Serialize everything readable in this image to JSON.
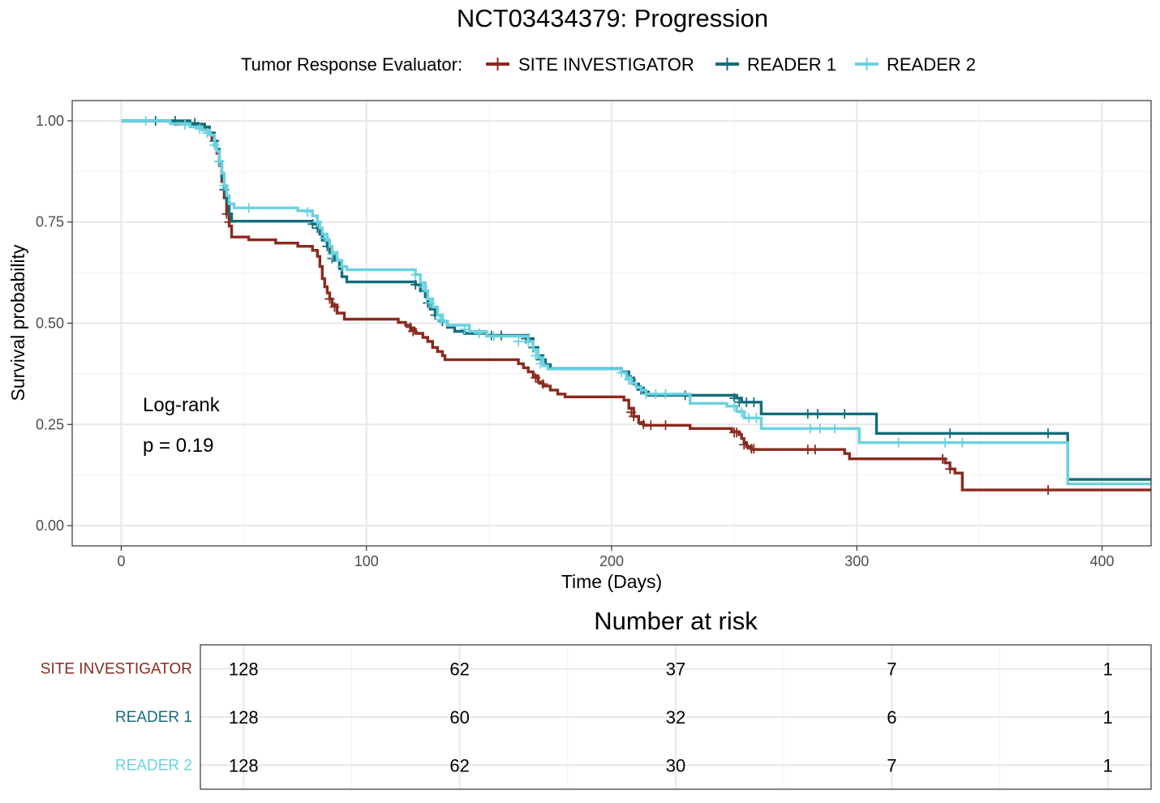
{
  "chart_data": {
    "type": "line",
    "subtype": "kaplan-meier",
    "title": "NCT03434379: Progression",
    "xlabel": "Time (Days)",
    "ylabel": "Survival probability",
    "xlim": [
      -20,
      420
    ],
    "ylim": [
      -0.05,
      1.05
    ],
    "xticks": [
      0,
      100,
      200,
      300,
      400
    ],
    "yticks": [
      0.0,
      0.25,
      0.5,
      0.75,
      1.0
    ],
    "xtick_labels": [
      "0",
      "100",
      "200",
      "300",
      "400"
    ],
    "ytick_labels": [
      "0.00",
      "0.25",
      "0.50",
      "0.75",
      "1.00"
    ],
    "grid": true,
    "legend": {
      "placement": "top",
      "title": "Tumor Response Evaluator:",
      "entries": [
        "SITE INVESTIGATOR",
        "READER 1",
        "READER 2"
      ]
    },
    "annotation": {
      "line1": "Log-rank",
      "line2": "p = 0.19"
    },
    "series": [
      {
        "name": "SITE INVESTIGATOR",
        "color": "#8B2A1E",
        "steps": [
          [
            0,
            1.0
          ],
          [
            22,
            0.992
          ],
          [
            30,
            0.985
          ],
          [
            34,
            0.977
          ],
          [
            36,
            0.97
          ],
          [
            37,
            0.955
          ],
          [
            38,
            0.94
          ],
          [
            39,
            0.92
          ],
          [
            40,
            0.89
          ],
          [
            41,
            0.85
          ],
          [
            42,
            0.81
          ],
          [
            43,
            0.77
          ],
          [
            44,
            0.74
          ],
          [
            45,
            0.713
          ],
          [
            52,
            0.706
          ],
          [
            63,
            0.698
          ],
          [
            72,
            0.69
          ],
          [
            78,
            0.68
          ],
          [
            80,
            0.665
          ],
          [
            81,
            0.64
          ],
          [
            82,
            0.61
          ],
          [
            83,
            0.59
          ],
          [
            84,
            0.575
          ],
          [
            85,
            0.56
          ],
          [
            86,
            0.545
          ],
          [
            88,
            0.525
          ],
          [
            91,
            0.51
          ],
          [
            113,
            0.502
          ],
          [
            116,
            0.495
          ],
          [
            118,
            0.485
          ],
          [
            120,
            0.475
          ],
          [
            123,
            0.465
          ],
          [
            125,
            0.455
          ],
          [
            127,
            0.44
          ],
          [
            129,
            0.43
          ],
          [
            131,
            0.42
          ],
          [
            132,
            0.41
          ],
          [
            162,
            0.4
          ],
          [
            164,
            0.39
          ],
          [
            166,
            0.38
          ],
          [
            168,
            0.37
          ],
          [
            170,
            0.355
          ],
          [
            172,
            0.345
          ],
          [
            175,
            0.335
          ],
          [
            178,
            0.325
          ],
          [
            181,
            0.318
          ],
          [
            205,
            0.31
          ],
          [
            207,
            0.29
          ],
          [
            209,
            0.27
          ],
          [
            211,
            0.255
          ],
          [
            213,
            0.248
          ],
          [
            232,
            0.24
          ],
          [
            249,
            0.232
          ],
          [
            252,
            0.225
          ],
          [
            253,
            0.215
          ],
          [
            254,
            0.205
          ],
          [
            255,
            0.195
          ],
          [
            257,
            0.188
          ],
          [
            295,
            0.178
          ],
          [
            297,
            0.165
          ],
          [
            336,
            0.155
          ],
          [
            338,
            0.14
          ],
          [
            340,
            0.13
          ],
          [
            343,
            0.088
          ],
          [
            420,
            0.088
          ]
        ],
        "censors": [
          [
            43,
            0.77
          ],
          [
            44,
            0.75
          ],
          [
            85,
            0.56
          ],
          [
            87,
            0.54
          ],
          [
            118,
            0.49
          ],
          [
            119,
            0.48
          ],
          [
            169,
            0.365
          ],
          [
            172,
            0.35
          ],
          [
            208,
            0.28
          ],
          [
            209,
            0.27
          ],
          [
            213,
            0.25
          ],
          [
            216,
            0.248
          ],
          [
            222,
            0.248
          ],
          [
            250,
            0.23
          ],
          [
            251,
            0.23
          ],
          [
            254,
            0.2
          ],
          [
            257,
            0.19
          ],
          [
            258,
            0.19
          ],
          [
            280,
            0.188
          ],
          [
            283,
            0.188
          ],
          [
            335,
            0.165
          ],
          [
            338,
            0.14
          ],
          [
            378,
            0.088
          ]
        ]
      },
      {
        "name": "READER 1",
        "color": "#146C7A",
        "steps": [
          [
            0,
            1.0
          ],
          [
            28,
            0.992
          ],
          [
            34,
            0.985
          ],
          [
            36,
            0.97
          ],
          [
            38,
            0.95
          ],
          [
            39,
            0.93
          ],
          [
            40,
            0.9
          ],
          [
            41,
            0.86
          ],
          [
            42,
            0.83
          ],
          [
            43,
            0.8
          ],
          [
            44,
            0.77
          ],
          [
            45,
            0.752
          ],
          [
            78,
            0.745
          ],
          [
            80,
            0.735
          ],
          [
            81,
            0.72
          ],
          [
            82,
            0.705
          ],
          [
            84,
            0.69
          ],
          [
            85,
            0.675
          ],
          [
            87,
            0.655
          ],
          [
            89,
            0.635
          ],
          [
            90,
            0.615
          ],
          [
            92,
            0.602
          ],
          [
            120,
            0.595
          ],
          [
            122,
            0.58
          ],
          [
            124,
            0.565
          ],
          [
            125,
            0.55
          ],
          [
            126,
            0.535
          ],
          [
            128,
            0.52
          ],
          [
            131,
            0.505
          ],
          [
            133,
            0.49
          ],
          [
            136,
            0.48
          ],
          [
            140,
            0.475
          ],
          [
            149,
            0.47
          ],
          [
            166,
            0.462
          ],
          [
            168,
            0.44
          ],
          [
            170,
            0.42
          ],
          [
            172,
            0.41
          ],
          [
            173,
            0.398
          ],
          [
            175,
            0.388
          ],
          [
            204,
            0.38
          ],
          [
            207,
            0.365
          ],
          [
            209,
            0.35
          ],
          [
            211,
            0.34
          ],
          [
            213,
            0.33
          ],
          [
            215,
            0.322
          ],
          [
            251,
            0.315
          ],
          [
            253,
            0.305
          ],
          [
            261,
            0.276
          ],
          [
            308,
            0.228
          ],
          [
            386,
            0.114
          ],
          [
            420,
            0.114
          ]
        ],
        "censors": [
          [
            14,
            1.0
          ],
          [
            22,
            1.0
          ],
          [
            30,
            0.995
          ],
          [
            38,
            0.95
          ],
          [
            40,
            0.9
          ],
          [
            42,
            0.83
          ],
          [
            78,
            0.745
          ],
          [
            80,
            0.735
          ],
          [
            84,
            0.69
          ],
          [
            86,
            0.66
          ],
          [
            120,
            0.595
          ],
          [
            125,
            0.55
          ],
          [
            128,
            0.52
          ],
          [
            131,
            0.505
          ],
          [
            151,
            0.47
          ],
          [
            155,
            0.47
          ],
          [
            165,
            0.462
          ],
          [
            168,
            0.44
          ],
          [
            171,
            0.41
          ],
          [
            208,
            0.36
          ],
          [
            212,
            0.335
          ],
          [
            230,
            0.322
          ],
          [
            250,
            0.315
          ],
          [
            252,
            0.305
          ],
          [
            255,
            0.305
          ],
          [
            258,
            0.305
          ],
          [
            280,
            0.276
          ],
          [
            284,
            0.276
          ],
          [
            295,
            0.276
          ],
          [
            338,
            0.228
          ],
          [
            378,
            0.228
          ]
        ]
      },
      {
        "name": "READER 2",
        "color": "#6AD2E0",
        "steps": [
          [
            0,
            1.0
          ],
          [
            20,
            0.993
          ],
          [
            28,
            0.985
          ],
          [
            33,
            0.977
          ],
          [
            36,
            0.965
          ],
          [
            38,
            0.945
          ],
          [
            39,
            0.925
          ],
          [
            40,
            0.9
          ],
          [
            41,
            0.87
          ],
          [
            42,
            0.84
          ],
          [
            43,
            0.815
          ],
          [
            44,
            0.795
          ],
          [
            46,
            0.785
          ],
          [
            72,
            0.778
          ],
          [
            78,
            0.765
          ],
          [
            80,
            0.75
          ],
          [
            81,
            0.735
          ],
          [
            82,
            0.72
          ],
          [
            84,
            0.705
          ],
          [
            85,
            0.69
          ],
          [
            86,
            0.675
          ],
          [
            88,
            0.655
          ],
          [
            90,
            0.64
          ],
          [
            92,
            0.632
          ],
          [
            120,
            0.62
          ],
          [
            122,
            0.6
          ],
          [
            124,
            0.58
          ],
          [
            125,
            0.56
          ],
          [
            127,
            0.54
          ],
          [
            129,
            0.52
          ],
          [
            131,
            0.505
          ],
          [
            133,
            0.495
          ],
          [
            142,
            0.48
          ],
          [
            149,
            0.468
          ],
          [
            166,
            0.455
          ],
          [
            168,
            0.435
          ],
          [
            170,
            0.415
          ],
          [
            172,
            0.395
          ],
          [
            174,
            0.387
          ],
          [
            204,
            0.378
          ],
          [
            206,
            0.365
          ],
          [
            208,
            0.352
          ],
          [
            210,
            0.342
          ],
          [
            212,
            0.335
          ],
          [
            214,
            0.325
          ],
          [
            232,
            0.302
          ],
          [
            247,
            0.295
          ],
          [
            251,
            0.282
          ],
          [
            254,
            0.266
          ],
          [
            261,
            0.24
          ],
          [
            301,
            0.205
          ],
          [
            386,
            0.103
          ],
          [
            420,
            0.103
          ]
        ],
        "censors": [
          [
            10,
            1.0
          ],
          [
            26,
            0.99
          ],
          [
            32,
            0.98
          ],
          [
            35,
            0.97
          ],
          [
            38,
            0.94
          ],
          [
            40,
            0.9
          ],
          [
            42,
            0.84
          ],
          [
            52,
            0.785
          ],
          [
            76,
            0.775
          ],
          [
            80,
            0.75
          ],
          [
            83,
            0.71
          ],
          [
            86,
            0.67
          ],
          [
            90,
            0.64
          ],
          [
            120,
            0.62
          ],
          [
            123,
            0.59
          ],
          [
            126,
            0.55
          ],
          [
            130,
            0.51
          ],
          [
            140,
            0.485
          ],
          [
            146,
            0.475
          ],
          [
            152,
            0.468
          ],
          [
            162,
            0.455
          ],
          [
            166,
            0.455
          ],
          [
            169,
            0.42
          ],
          [
            171,
            0.4
          ],
          [
            204,
            0.378
          ],
          [
            207,
            0.36
          ],
          [
            214,
            0.325
          ],
          [
            218,
            0.325
          ],
          [
            222,
            0.325
          ],
          [
            250,
            0.295
          ],
          [
            253,
            0.28
          ],
          [
            256,
            0.266
          ],
          [
            259,
            0.266
          ],
          [
            281,
            0.24
          ],
          [
            285,
            0.24
          ],
          [
            291,
            0.24
          ],
          [
            317,
            0.205
          ],
          [
            336,
            0.205
          ],
          [
            343,
            0.205
          ]
        ]
      }
    ]
  },
  "risk_table": {
    "title": "Number at risk",
    "times": [
      0,
      100,
      200,
      300,
      400
    ],
    "rows": [
      {
        "name": "SITE INVESTIGATOR",
        "color": "#8B2A1E",
        "counts": [
          "128",
          "62",
          "37",
          "7",
          "1"
        ]
      },
      {
        "name": "READER 1",
        "color": "#146C7A",
        "counts": [
          "128",
          "60",
          "32",
          "6",
          "1"
        ]
      },
      {
        "name": "READER 2",
        "color": "#6AD2E0",
        "counts": [
          "128",
          "62",
          "30",
          "7",
          "1"
        ]
      }
    ]
  }
}
